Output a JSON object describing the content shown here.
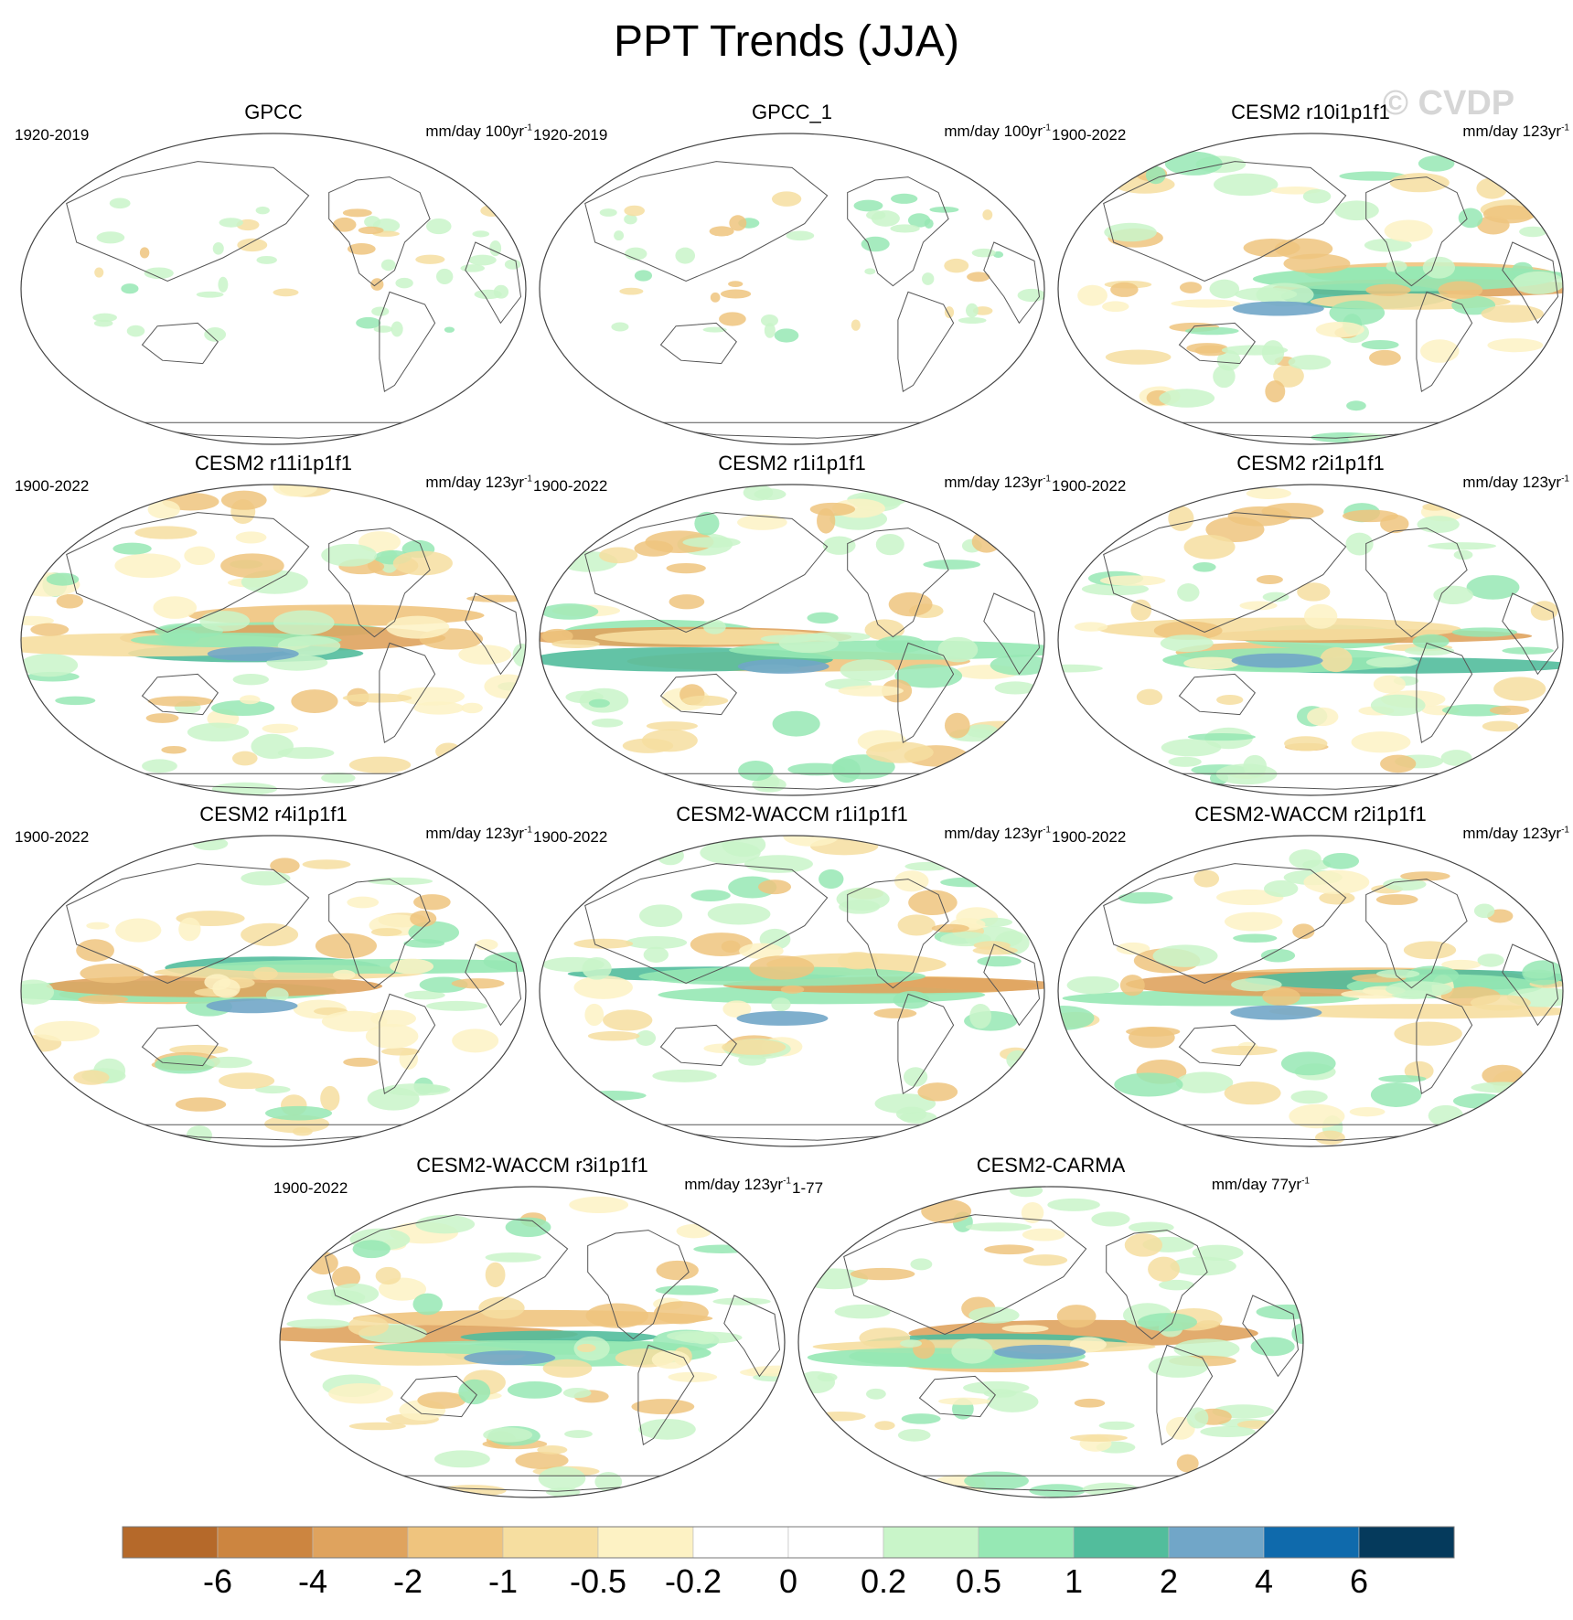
{
  "title": "PPT Trends (JJA)",
  "watermark": "© CVDP",
  "panels": [
    {
      "title": "GPCC",
      "period": "1920-2019",
      "units": "mm/day 100yr",
      "units_exp": "-1",
      "kind": "obs",
      "seed": 1
    },
    {
      "title": "GPCC_1",
      "period": "1920-2019",
      "units": "mm/day 100yr",
      "units_exp": "-1",
      "kind": "obs",
      "seed": 2
    },
    {
      "title": "CESM2 r10i1p1f1",
      "period": "1900-2022",
      "units": "mm/day 123yr",
      "units_exp": "-1",
      "kind": "model",
      "seed": 3
    },
    {
      "title": "CESM2 r11i1p1f1",
      "period": "1900-2022",
      "units": "mm/day 123yr",
      "units_exp": "-1",
      "kind": "model",
      "seed": 4
    },
    {
      "title": "CESM2 r1i1p1f1",
      "period": "1900-2022",
      "units": "mm/day 123yr",
      "units_exp": "-1",
      "kind": "model",
      "seed": 5
    },
    {
      "title": "CESM2 r2i1p1f1",
      "period": "1900-2022",
      "units": "mm/day 123yr",
      "units_exp": "-1",
      "kind": "model",
      "seed": 6
    },
    {
      "title": "CESM2 r4i1p1f1",
      "period": "1900-2022",
      "units": "mm/day 123yr",
      "units_exp": "-1",
      "kind": "model",
      "seed": 7
    },
    {
      "title": "CESM2-WACCM r1i1p1f1",
      "period": "1900-2022",
      "units": "mm/day 123yr",
      "units_exp": "-1",
      "kind": "model",
      "seed": 8
    },
    {
      "title": "CESM2-WACCM r2i1p1f1",
      "period": "1900-2022",
      "units": "mm/day 123yr",
      "units_exp": "-1",
      "kind": "model",
      "seed": 9
    },
    {
      "title": "CESM2-WACCM r3i1p1f1",
      "period": "1900-2022",
      "units": "mm/day 123yr",
      "units_exp": "-1",
      "kind": "model",
      "seed": 10
    },
    {
      "title": "CESM2-CARMA",
      "period": "1-77",
      "units": "mm/day 77yr",
      "units_exp": "-1",
      "kind": "model",
      "seed": 11
    }
  ],
  "colorbar": {
    "colors": [
      "#b5692a",
      "#cc8540",
      "#dfa35e",
      "#efc47e",
      "#f6dea0",
      "#fdf2c4",
      "#ffffff",
      "#ffffff",
      "#c9f5c9",
      "#96e8b4",
      "#52bd9c",
      "#71a6c8",
      "#0f6aac",
      "#053a5c"
    ],
    "labels": [
      "-6",
      "-4",
      "-2",
      "-1",
      "-0.5",
      "-0.2",
      "0",
      "0.2",
      "0.5",
      "1",
      "2",
      "4",
      "6"
    ]
  }
}
